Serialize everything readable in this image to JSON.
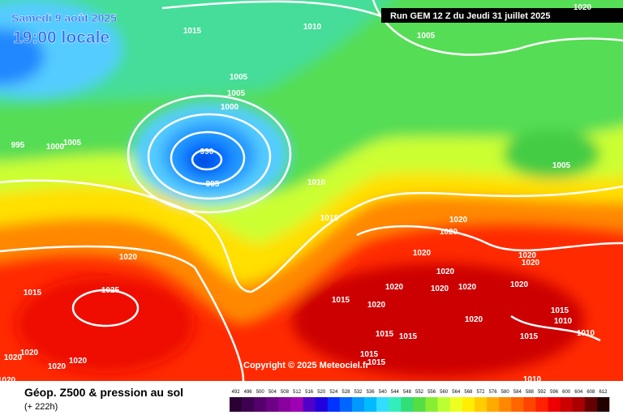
{
  "header": {
    "date": "Samedi 9 août 2025",
    "time": "19:00 locale",
    "run": "Run GEM 12 Z du Jeudi 31 juillet 2025"
  },
  "map": {
    "isobar_labels": [
      "1015",
      "1010",
      "1005",
      "1020",
      "1005",
      "1005",
      "1000",
      "995",
      "1000",
      "1005",
      "990",
      "995",
      "1005",
      "1010",
      "1015",
      "1020",
      "1020",
      "1020",
      "1020",
      "1020",
      "1015",
      "1025",
      "1020",
      "1020",
      "1020",
      "1020",
      "1020",
      "1020",
      "1015",
      "1020",
      "1020",
      "1015",
      "1010",
      "1010",
      "1015",
      "1015",
      "1015",
      "1020",
      "1020",
      "1020",
      "1020",
      "1015",
      "1015",
      "1010",
      "1020"
    ],
    "copyright": "Copyright © 2025 Meteociel.fr"
  },
  "footer": {
    "title": "Géop. Z500 & pression au sol",
    "lead": "(+ 222h)"
  },
  "legend": {
    "levels": [
      492,
      496,
      500,
      504,
      508,
      512,
      516,
      520,
      524,
      528,
      532,
      536,
      540,
      544,
      548,
      552,
      556,
      560,
      564,
      568,
      572,
      576,
      580,
      584,
      588,
      592,
      596,
      600,
      604,
      608,
      612
    ],
    "colors": [
      "#2b0033",
      "#3d0050",
      "#55006b",
      "#6e0085",
      "#8a009e",
      "#a000b4",
      "#5000c8",
      "#2200dd",
      "#0033ff",
      "#0066ff",
      "#0099ff",
      "#00bbff",
      "#33ddff",
      "#33eebb",
      "#33dd77",
      "#55dd44",
      "#88ee33",
      "#bbff33",
      "#eeff22",
      "#ffee00",
      "#ffcc00",
      "#ffaa00",
      "#ff8800",
      "#ff6600",
      "#ff4400",
      "#ff2200",
      "#ee0000",
      "#cc0000",
      "#aa0000",
      "#660000",
      "#220000"
    ]
  }
}
